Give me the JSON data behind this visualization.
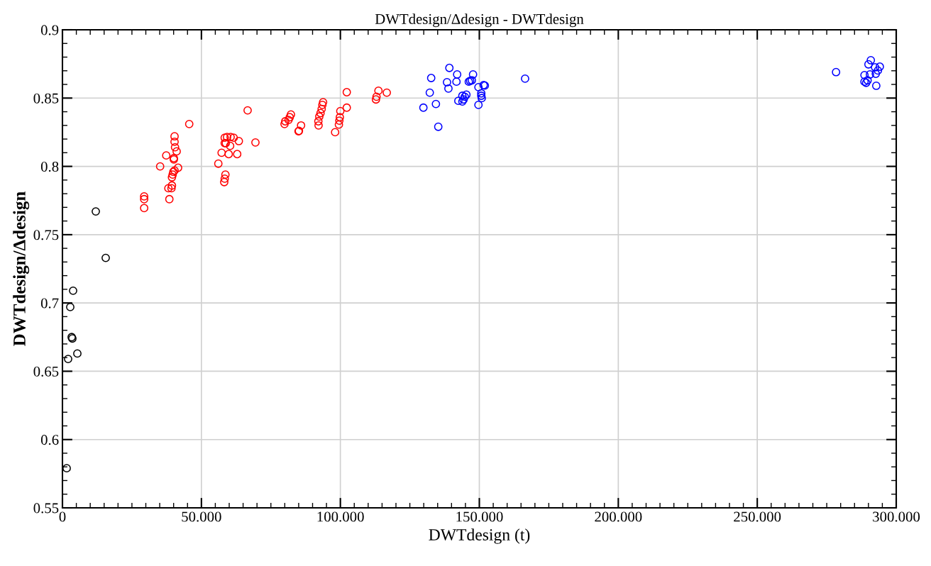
{
  "chart_data": {
    "type": "scatter",
    "title": "DWTdesign/Δdesign - DWTdesign",
    "xlabel": "DWTdesign (t)",
    "ylabel": "DWTdesign/Δdesign",
    "marker": "circle",
    "grid": true,
    "xlim": [
      0,
      300
    ],
    "ylim": [
      0.55,
      0.9
    ],
    "xticks": [
      0,
      {
        "value": 50,
        "label": "50.000"
      },
      {
        "value": 100,
        "label": "100.000"
      },
      {
        "value": 150,
        "label": "150.000"
      },
      {
        "value": 200,
        "label": "200.000"
      },
      {
        "value": 250,
        "label": "250.000"
      },
      {
        "value": 300,
        "label": "300.000"
      }
    ],
    "yticks": [
      0.55,
      0.6,
      0.65,
      0.7,
      0.75,
      0.8,
      0.85,
      0.9
    ],
    "series": [
      {
        "color": "#000000",
        "x": [
          1.53,
          2.04,
          2.81,
          3.83,
          3.32,
          3.57,
          5.36,
          12.0,
          15.57
        ],
        "values": [
          0.579,
          0.659,
          0.697,
          0.709,
          0.675,
          0.674,
          0.663,
          0.767,
          0.733
        ]
      },
      {
        "color": "#ff0000",
        "x": [
          29.4,
          29.4,
          29.4,
          35.15,
          37.35,
          38.47,
          38.12,
          39.23,
          39.4,
          39.4,
          39.65,
          39.9,
          40.34,
          41.61,
          40.08,
          40.08,
          41.1,
          40.51,
          40.34,
          40.34,
          45.62,
          56.09,
          57.27,
          59.82,
          62.88,
          58.38,
          58.38,
          59.23,
          60.51,
          61.61,
          63.47,
          60.34,
          58.8,
          69.44,
          66.63,
          58.64,
          58.38,
          58.21,
          79.91,
          80.17,
          81.36,
          81.78,
          82.21,
          84.94,
          85.1,
          85.86,
          92.16,
          92.08,
          92.42,
          92.85,
          93.27,
          93.53,
          93.78,
          98.11,
          99.47,
          99.64,
          99.81,
          99.98,
          102.3,
          102.3,
          112.8,
          113.0,
          113.7,
          116.7
        ],
        "values": [
          0.778,
          0.776,
          0.7695,
          0.8,
          0.808,
          0.776,
          0.784,
          0.784,
          0.786,
          0.792,
          0.794,
          0.796,
          0.797,
          0.799,
          0.806,
          0.805,
          0.811,
          0.814,
          0.818,
          0.822,
          0.831,
          0.802,
          0.81,
          0.809,
          0.809,
          0.821,
          0.817,
          0.8215,
          0.8215,
          0.821,
          0.8185,
          0.815,
          0.817,
          0.8175,
          0.841,
          0.794,
          0.791,
          0.7885,
          0.831,
          0.833,
          0.834,
          0.836,
          0.838,
          0.8257,
          0.826,
          0.83,
          0.83,
          0.833,
          0.8365,
          0.839,
          0.842,
          0.845,
          0.847,
          0.825,
          0.8306,
          0.8335,
          0.836,
          0.8405,
          0.843,
          0.8543,
          0.849,
          0.851,
          0.8554,
          0.854
        ]
      },
      {
        "color": "#0000ff",
        "x": [
          129.87,
          132.17,
          132.68,
          134.38,
          135.23,
          138.37,
          138.88,
          139.22,
          141.77,
          142.02,
          142.45,
          143.9,
          144.33,
          144.75,
          145.34,
          143.9,
          146.2,
          147.31,
          147.74,
          146.7,
          149.68,
          149.68,
          150.7,
          150.7,
          150.87,
          151.55,
          151.98,
          166.46,
          278.35,
          290.86,
          290.01,
          292.4,
          294.1,
          293.4,
          292.65,
          290.55,
          288.58,
          288.58,
          289.18,
          289.69,
          292.82
        ],
        "values": [
          0.843,
          0.854,
          0.8647,
          0.8457,
          0.829,
          0.8616,
          0.857,
          0.8721,
          0.862,
          0.8673,
          0.848,
          0.8475,
          0.849,
          0.851,
          0.8525,
          0.8517,
          0.862,
          0.863,
          0.8673,
          0.8626,
          0.858,
          0.845,
          0.8517,
          0.8535,
          0.85,
          0.8595,
          0.8592,
          0.8642,
          0.869,
          0.8777,
          0.8747,
          0.8725,
          0.873,
          0.8702,
          0.8678,
          0.8673,
          0.8668,
          0.862,
          0.8612,
          0.863,
          0.859
        ]
      }
    ]
  }
}
